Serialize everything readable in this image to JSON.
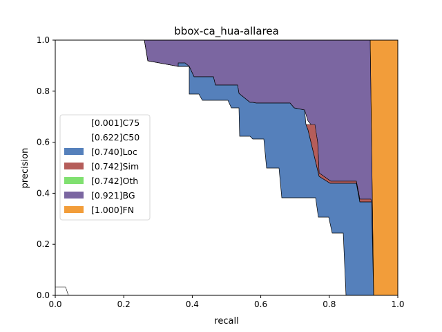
{
  "chart_data": {
    "type": "area",
    "title": "bbox-ca_hua-allarea",
    "xlabel": "recall",
    "ylabel": "precision",
    "xlim": [
      0,
      1
    ],
    "ylim": [
      0,
      1
    ],
    "xticks": [
      "0.0",
      "0.2",
      "0.4",
      "0.6",
      "0.8",
      "1.0"
    ],
    "yticks": [
      "0.0",
      "0.2",
      "0.4",
      "0.6",
      "0.8",
      "1.0"
    ],
    "grid": false,
    "legend_position": "center-left",
    "series": [
      {
        "name": "[0.001]C75",
        "color": "#ffffff",
        "x": [
          0.0,
          0.02,
          0.036,
          0.04
        ],
        "y": [
          0.03,
          0.03,
          0.02,
          0.0
        ]
      },
      {
        "name": "[0.622]C50",
        "color": "#ffffff",
        "x": [
          0.0,
          0.26,
          0.26
        ],
        "y": [
          1.0,
          1.0,
          0.0
        ]
      },
      {
        "name": "[0.740]Loc",
        "color": "#5580bb",
        "x": [
          0.26,
          0.27,
          0.38,
          0.39,
          0.42,
          0.43,
          0.5,
          0.51,
          0.53,
          0.54,
          0.57,
          0.58,
          0.61,
          0.62,
          0.65,
          0.66,
          0.76,
          0.77,
          0.79,
          0.8,
          0.83,
          0.84,
          0.85
        ],
        "y": [
          1.0,
          0.91,
          0.91,
          0.79,
          0.79,
          0.76,
          0.76,
          0.74,
          0.74,
          0.625,
          0.625,
          0.61,
          0.61,
          0.5,
          0.5,
          0.38,
          0.38,
          0.31,
          0.31,
          0.27,
          0.27,
          0.24,
          0.0
        ]
      },
      {
        "name": "[0.742]Sim",
        "color": "#b55d5a",
        "x": [
          0.74,
          0.76,
          0.77,
          0.8,
          0.88,
          0.9,
          0.92
        ],
        "y": [
          0.64,
          0.63,
          0.63,
          0.45,
          0.44,
          0.38,
          0.37
        ]
      },
      {
        "name": "[0.742]Oth",
        "color": "#80e070",
        "x": [
          0.74,
          0.76
        ],
        "y": [
          0.64,
          0.64
        ]
      },
      {
        "name": "[0.921]BG",
        "color": "#7b66a1",
        "x": [
          0.26,
          0.92,
          0.93
        ],
        "y": [
          1.0,
          1.0,
          0.0
        ]
      },
      {
        "name": "[1.000]FN",
        "color": "#f29d3a",
        "x": [
          0.92,
          1.0,
          1.0,
          0.93
        ],
        "y": [
          1.0,
          1.0,
          0.0,
          0.0
        ]
      }
    ]
  }
}
